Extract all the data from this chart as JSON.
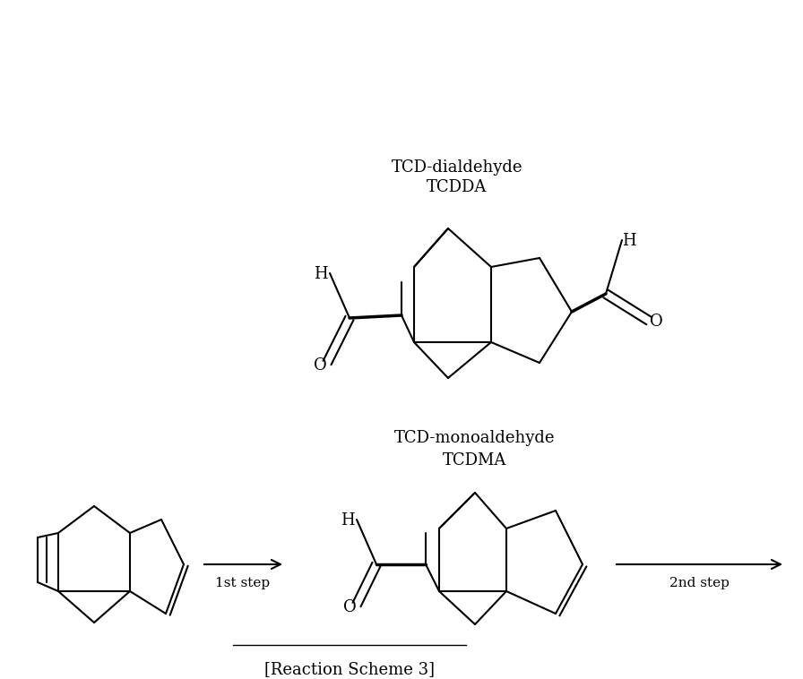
{
  "title": "[Reaction Scheme 3]",
  "title_fontsize": 13,
  "bg_color": "#ffffff",
  "line_color": "#000000",
  "text_color": "#000000",
  "label1": "TCDMA",
  "label1b": "TCD-monoaldehyde",
  "label2": "TCDDA",
  "label2b": "TCD-dialdehyde",
  "step1": "1st step",
  "step2": "2nd step"
}
